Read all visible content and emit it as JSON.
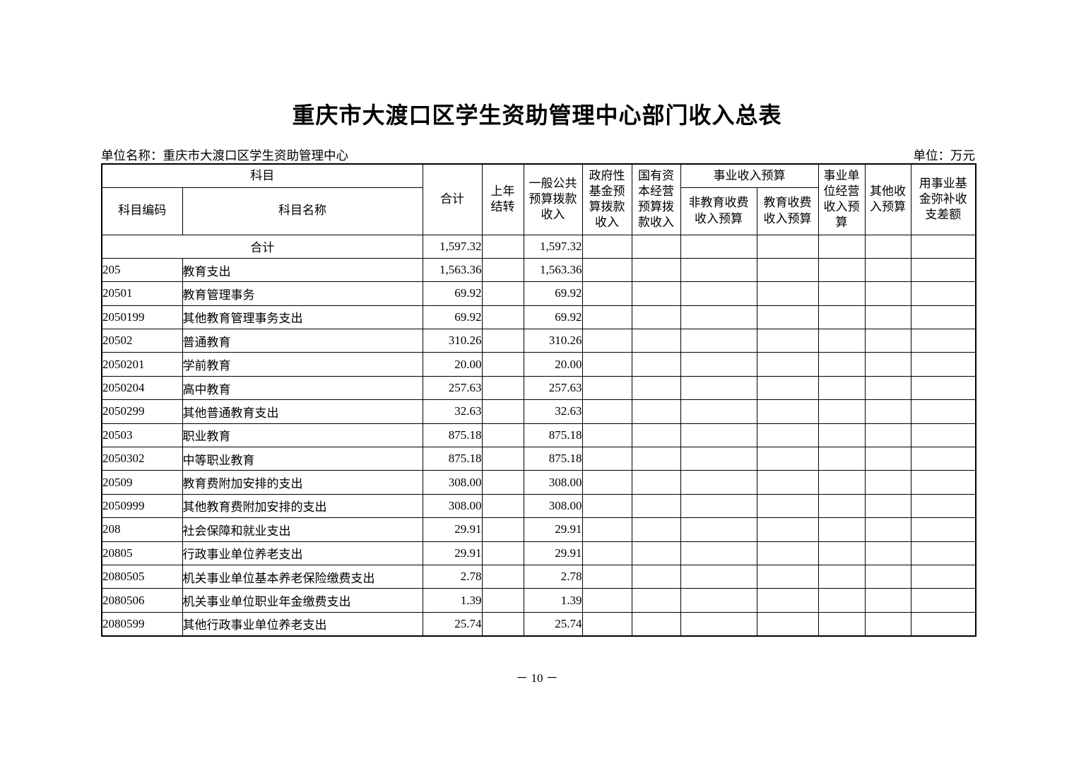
{
  "page": {
    "title": "重庆市大渡口区学生资助管理中心部门收入总表",
    "unit_name": "单位名称：重庆市大渡口区学生资助管理中心",
    "unit": "单位：万元",
    "page_number": "－ 10 －"
  },
  "table": {
    "headers": {
      "subject": "科目",
      "subject_code": "科目编码",
      "subject_name": "科目名称",
      "total": "合计",
      "carryover": "上年\n结转",
      "general_public": "一般公共\n预算拨款\n收入",
      "gov_fund": "政府性\n基金预\n算拨款\n收入",
      "state_capital": "国有资\n本经营\n预算拨\n款收入",
      "business_income_group": "事业收入预算",
      "non_edu_fee": "非教育收费\n收入预算",
      "edu_fee": "教育收费\n收入预算",
      "business_operating": "事业单\n位经营\n收入预\n算",
      "other_income": "其他收\n入预算",
      "fund_balance": "用事业基\n金弥补收\n支差额"
    },
    "rows": [
      {
        "merged": true,
        "code": "",
        "name": "合计",
        "level": 0,
        "total": "1,597.32",
        "carry": "",
        "general": "1,597.32"
      },
      {
        "code": "205",
        "name": "教育支出",
        "level": 0,
        "total": "1,563.36",
        "carry": "",
        "general": "1,563.36"
      },
      {
        "code": "20501",
        "name": "教育管理事务",
        "level": 1,
        "total": "69.92",
        "carry": "",
        "general": "69.92"
      },
      {
        "code": "2050199",
        "name": "其他教育管理事务支出",
        "level": 2,
        "total": "69.92",
        "carry": "",
        "general": "69.92"
      },
      {
        "code": "20502",
        "name": "普通教育",
        "level": 1,
        "total": "310.26",
        "carry": "",
        "general": "310.26"
      },
      {
        "code": "2050201",
        "name": "学前教育",
        "level": 2,
        "total": "20.00",
        "carry": "",
        "general": "20.00"
      },
      {
        "code": "2050204",
        "name": "高中教育",
        "level": 2,
        "total": "257.63",
        "carry": "",
        "general": "257.63"
      },
      {
        "code": "2050299",
        "name": "其他普通教育支出",
        "level": 3,
        "total": "32.63",
        "carry": "",
        "general": "32.63"
      },
      {
        "code": "20503",
        "name": "职业教育",
        "level": 1,
        "total": "875.18",
        "carry": "",
        "general": "875.18"
      },
      {
        "code": "2050302",
        "name": "中等职业教育",
        "level": 2,
        "total": "875.18",
        "carry": "",
        "general": "875.18"
      },
      {
        "code": "20509",
        "name": "教育费附加安排的支出",
        "level": 1,
        "total": "308.00",
        "carry": "",
        "general": "308.00"
      },
      {
        "code": "2050999",
        "name": "其他教育费附加安排的支出",
        "level": 2,
        "total": "308.00",
        "carry": "",
        "general": "308.00"
      },
      {
        "code": "208",
        "name": "社会保障和就业支出",
        "level": 0,
        "total": "29.91",
        "carry": "",
        "general": "29.91"
      },
      {
        "code": "20805",
        "name": "行政事业单位养老支出",
        "level": 1,
        "total": "29.91",
        "carry": "",
        "general": "29.91"
      },
      {
        "code": "2080505",
        "name": "机关事业单位基本养老保险缴费支出",
        "level": 2,
        "total": "2.78",
        "carry": "",
        "general": "2.78"
      },
      {
        "code": "2080506",
        "name": "机关事业单位职业年金缴费支出",
        "level": 2,
        "total": "1.39",
        "carry": "",
        "general": "1.39"
      },
      {
        "code": "2080599",
        "name": "其他行政事业单位养老支出",
        "level": 2,
        "total": "25.74",
        "carry": "",
        "general": "25.74"
      }
    ],
    "empty_cell_names": [
      "gov-fund-cell",
      "state-capital-cell",
      "non-edu-fee-cell",
      "edu-fee-cell",
      "business-operating-cell",
      "other-income-cell",
      "fund-balance-cell"
    ]
  }
}
